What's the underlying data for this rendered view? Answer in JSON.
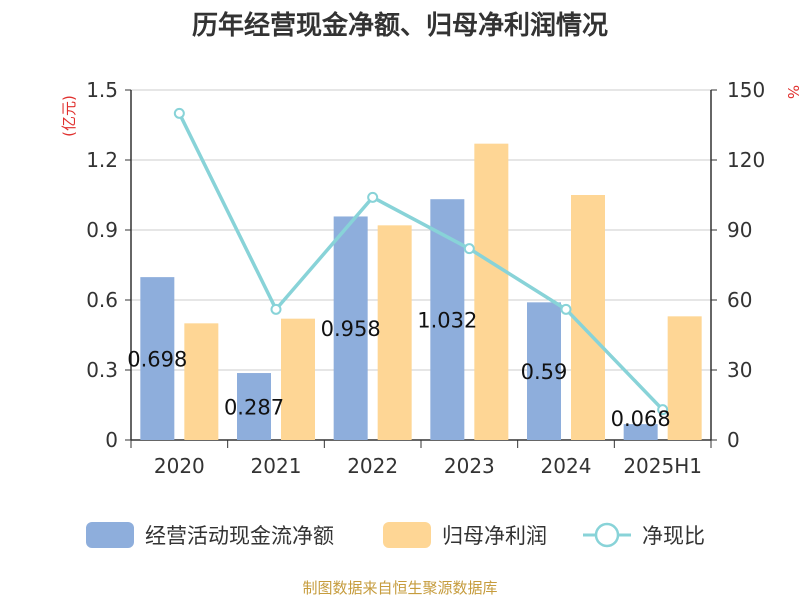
{
  "chart_data": {
    "type": "bar",
    "title": "历年经营现金净额、归母净利润情况",
    "categories": [
      "2020",
      "2021",
      "2022",
      "2023",
      "2024",
      "2025H1"
    ],
    "left_axis": {
      "unit": "(亿元)",
      "ticks": [
        "1.5",
        "1.2",
        "0.9",
        "0.6",
        "0.3",
        "0"
      ],
      "ylim": [
        0,
        1.5
      ]
    },
    "right_axis": {
      "unit": "%",
      "ticks": [
        "150",
        "120",
        "90",
        "60",
        "30",
        "0"
      ],
      "ylim": [
        0,
        150
      ]
    },
    "series": [
      {
        "name": "经营活动现金流净额",
        "type": "bar",
        "axis": "left",
        "color": "#8eaedc",
        "values": [
          0.698,
          0.287,
          0.958,
          1.032,
          0.59,
          0.068
        ],
        "labels": [
          "0.698",
          "0.287",
          "0.958",
          "1.032",
          "0.59",
          "0.068"
        ]
      },
      {
        "name": "归母净利润",
        "type": "bar",
        "axis": "left",
        "color": "#fed695",
        "values": [
          0.5,
          0.52,
          0.92,
          1.27,
          1.05,
          0.53
        ]
      },
      {
        "name": "净现比",
        "type": "line",
        "axis": "right",
        "color": "#88d3d8",
        "values": [
          140,
          56,
          104,
          82,
          56,
          13
        ]
      }
    ],
    "grid": true,
    "legend": "bottom"
  },
  "footer": {
    "source": "制图数据来自恒生聚源数据库",
    "source_color": "#c69c3d"
  },
  "colors": {
    "unit_red": "#e0302e",
    "axis": "#333333",
    "grid": "#cccccc"
  }
}
